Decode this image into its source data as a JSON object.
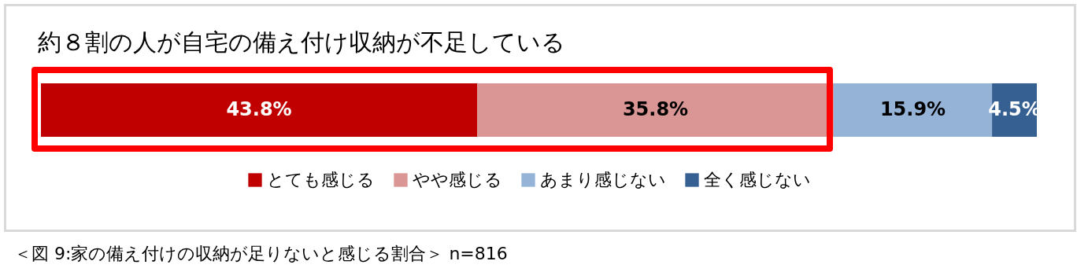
{
  "chart_data": {
    "type": "bar",
    "title": "約８割の人が自宅の備え付け収納が不足している",
    "orientation": "horizontal",
    "stacked": true,
    "categories": [
      null
    ],
    "tick_labels": false,
    "legend": "bottom",
    "annotations": [
      "＜図 9:家の備え付けの収納が足りないと感じる割合＞ n=816"
    ],
    "series": [
      {
        "name": "とても感じる",
        "color": "#c00000",
        "values": [
          43.8
        ],
        "value_labels": [
          "43.8%"
        ]
      },
      {
        "name": "やや感じる",
        "color": "#d99694",
        "values": [
          35.8
        ],
        "value_labels": [
          "35.8%"
        ]
      },
      {
        "name": "あまり感じない",
        "color": "#95b3d7",
        "values": [
          15.9
        ],
        "value_labels": [
          "15.9%"
        ]
      },
      {
        "name": "全く感じない",
        "color": "#376092",
        "values": [
          4.5
        ],
        "value_labels": [
          "4.5%"
        ]
      }
    ]
  }
}
